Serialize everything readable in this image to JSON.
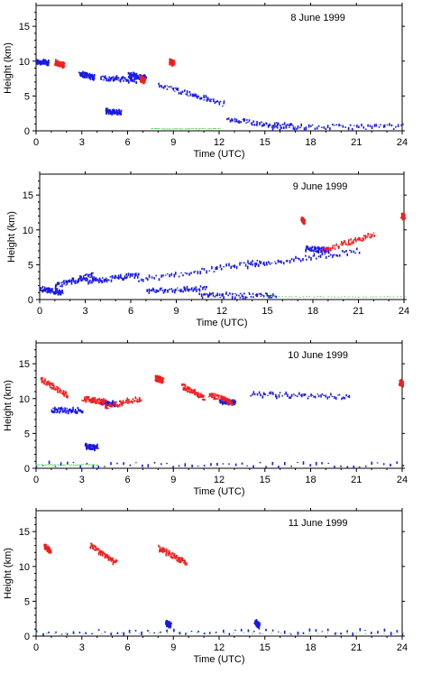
{
  "figure": {
    "xlabel": "Time (UTC)",
    "ylabel": "Height (km)"
  },
  "colors": {
    "blue": "#1a1ae6",
    "red": "#f02020",
    "green": "#5ad85a",
    "axis": "#000000"
  },
  "chart_data": [
    {
      "type": "scatter",
      "title": "8 June 1999",
      "xlabel": "Time (UTC)",
      "ylabel": "Height (km)",
      "xlim": [
        0,
        24
      ],
      "ylim": [
        0,
        18
      ],
      "xticks": [
        0,
        3,
        6,
        9,
        12,
        15,
        18,
        21,
        24
      ],
      "yticks": [
        0,
        5,
        10,
        15
      ],
      "series": [
        {
          "color": "blue",
          "segments": [
            {
              "x": [
                0,
                0.8
              ],
              "y": [
                9.9,
                9.8
              ]
            },
            {
              "x": [
                2.8,
                3.8
              ],
              "y": [
                8.2,
                7.7
              ]
            },
            {
              "x": [
                4.2,
                6.5
              ],
              "y": [
                7.6,
                7.2
              ]
            },
            {
              "x": [
                6.0,
                7.2
              ],
              "y": [
                8.0,
                7.6
              ]
            },
            {
              "x": [
                8.0,
                12.3
              ],
              "y": [
                6.6,
                3.8
              ]
            },
            {
              "x": [
                4.5,
                5.5
              ],
              "y": [
                2.8,
                2.6
              ]
            },
            {
              "x": [
                12.5,
                17.0
              ],
              "y": [
                1.5,
                0.6
              ]
            },
            {
              "x": [
                15.5,
                24
              ],
              "y": [
                0.5,
                0.6
              ]
            }
          ]
        },
        {
          "color": "red",
          "segments": [
            {
              "x": [
                1.2,
                1.8
              ],
              "y": [
                9.8,
                9.4
              ]
            },
            {
              "x": [
                6.8,
                7.1
              ],
              "y": [
                7.5,
                7.1
              ]
            },
            {
              "x": [
                8.7,
                9.0
              ],
              "y": [
                9.9,
                9.7
              ]
            }
          ]
        },
        {
          "color": "green",
          "segments": [
            {
              "x": [
                7.5,
                12.0
              ],
              "y": [
                0.3,
                0.3
              ]
            }
          ]
        }
      ]
    },
    {
      "type": "scatter",
      "title": "9 June 1999",
      "xlabel": "Time (UTC)",
      "ylabel": "Height (km)",
      "xlim": [
        0,
        24
      ],
      "ylim": [
        0,
        18
      ],
      "xticks": [
        0,
        3,
        6,
        9,
        12,
        15,
        18,
        21,
        24
      ],
      "yticks": [
        0,
        5,
        10,
        15
      ],
      "series": [
        {
          "color": "blue",
          "segments": [
            {
              "x": [
                0,
                1.5
              ],
              "y": [
                1.5,
                1.0
              ]
            },
            {
              "x": [
                1.0,
                3.5
              ],
              "y": [
                2.0,
                3.5
              ]
            },
            {
              "x": [
                3.0,
                6.5
              ],
              "y": [
                2.5,
                3.5
              ]
            },
            {
              "x": [
                6.5,
                15.0
              ],
              "y": [
                2.8,
                5.5
              ]
            },
            {
              "x": [
                7.0,
                11.0
              ],
              "y": [
                1.2,
                1.6
              ]
            },
            {
              "x": [
                10.5,
                15.5
              ],
              "y": [
                0.6,
                0.6
              ]
            },
            {
              "x": [
                13.5,
                21.0
              ],
              "y": [
                4.8,
                7.0
              ]
            },
            {
              "x": [
                17.5,
                19.0
              ],
              "y": [
                7.3,
                7.0
              ]
            }
          ]
        },
        {
          "color": "red",
          "segments": [
            {
              "x": [
                18.5,
                22.0
              ],
              "y": [
                7.0,
                9.3
              ]
            },
            {
              "x": [
                17.2,
                17.4
              ],
              "y": [
                11.5,
                11.2
              ]
            },
            {
              "x": [
                23.8,
                24.0
              ],
              "y": [
                12.0,
                11.8
              ]
            }
          ]
        },
        {
          "color": "green",
          "segments": [
            {
              "x": [
                15.0,
                24.0
              ],
              "y": [
                0.4,
                0.4
              ]
            }
          ]
        }
      ]
    },
    {
      "type": "scatter",
      "title": "10 June 1999",
      "xlabel": "Time (UTC)",
      "ylabel": "Height (km)",
      "xlim": [
        0,
        24
      ],
      "ylim": [
        0,
        18
      ],
      "xticks": [
        0,
        3,
        6,
        9,
        12,
        15,
        18,
        21,
        24
      ],
      "yticks": [
        0,
        5,
        10,
        15
      ],
      "series": [
        {
          "color": "blue",
          "segments": [
            {
              "x": [
                1.0,
                3.0
              ],
              "y": [
                8.3,
                8.3
              ]
            },
            {
              "x": [
                4.2,
                5.2
              ],
              "y": [
                9.5,
                9.2
              ]
            },
            {
              "x": [
                12.0,
                13.0
              ],
              "y": [
                9.5,
                9.5
              ]
            },
            {
              "x": [
                3.2,
                4.0
              ],
              "y": [
                3.1,
                3.0
              ]
            },
            {
              "x": [
                14.0,
                20.5
              ],
              "y": [
                10.6,
                10.2
              ]
            },
            {
              "x": [
                0,
                24.0
              ],
              "y": [
                0.5,
                0.5
              ]
            }
          ]
        },
        {
          "color": "red",
          "segments": [
            {
              "x": [
                0.3,
                2.0
              ],
              "y": [
                12.7,
                10.5
              ]
            },
            {
              "x": [
                4.5,
                6.8
              ],
              "y": [
                8.8,
                10.0
              ]
            },
            {
              "x": [
                3.0,
                4.5
              ],
              "y": [
                10.0,
                9.5
              ]
            },
            {
              "x": [
                9.5,
                11.0
              ],
              "y": [
                11.8,
                10.0
              ]
            },
            {
              "x": [
                11.3,
                12.8
              ],
              "y": [
                10.6,
                9.5
              ]
            },
            {
              "x": [
                7.8,
                8.3
              ],
              "y": [
                12.9,
                12.6
              ]
            },
            {
              "x": [
                23.8,
                24.0
              ],
              "y": [
                12.3,
                12.1
              ]
            }
          ]
        },
        {
          "color": "green",
          "segments": [
            {
              "x": [
                0.0,
                4.0
              ],
              "y": [
                0.5,
                0.5
              ]
            }
          ]
        }
      ]
    },
    {
      "type": "scatter",
      "title": "11 June 1999",
      "xlabel": "Time (UTC)",
      "ylabel": "Height (km)",
      "xlim": [
        0,
        24
      ],
      "ylim": [
        0,
        18
      ],
      "xticks": [
        0,
        3,
        6,
        9,
        12,
        15,
        18,
        21,
        24
      ],
      "yticks": [
        0,
        5,
        10,
        15
      ],
      "series": [
        {
          "color": "blue",
          "segments": [
            {
              "x": [
                0.0,
                24.0
              ],
              "y": [
                0.6,
                0.6
              ]
            },
            {
              "x": [
                8.5,
                8.8
              ],
              "y": [
                1.8,
                1.6
              ]
            },
            {
              "x": [
                14.3,
                14.6
              ],
              "y": [
                2.0,
                1.5
              ]
            }
          ]
        },
        {
          "color": "red",
          "segments": [
            {
              "x": [
                0.5,
                0.9
              ],
              "y": [
                12.9,
                12.2
              ]
            },
            {
              "x": [
                3.5,
                5.2
              ],
              "y": [
                13.0,
                10.5
              ]
            },
            {
              "x": [
                8.0,
                9.8
              ],
              "y": [
                12.6,
                10.5
              ]
            }
          ]
        },
        {
          "color": "green",
          "segments": [
            {
              "x": [
                0.0,
                24.0
              ],
              "y": [
                0.4,
                0.4
              ]
            }
          ]
        }
      ]
    }
  ]
}
